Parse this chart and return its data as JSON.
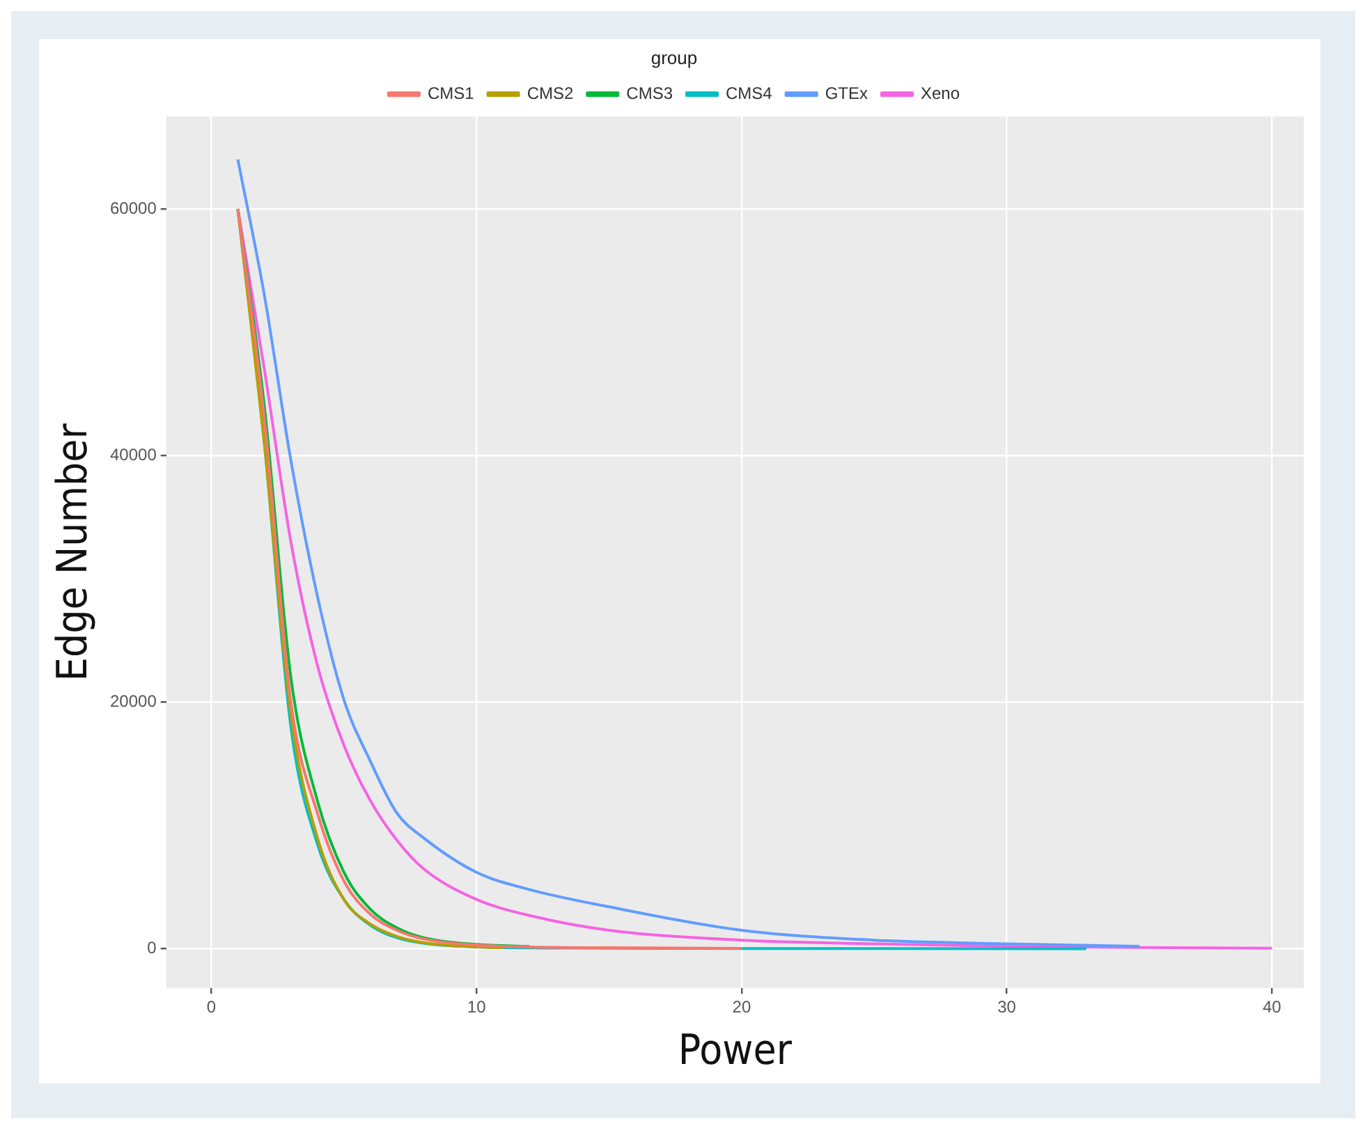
{
  "chart_data": {
    "type": "line",
    "xlabel": "Power",
    "ylabel": "Edge Number",
    "legend_title": "group",
    "xlim": [
      -1.7,
      41.2
    ],
    "xticks": [
      0,
      10,
      20,
      30,
      40
    ],
    "ylim": [
      -3200,
      67500
    ],
    "yticks": [
      0,
      20000,
      40000,
      60000
    ],
    "grid": true,
    "legend": "top",
    "marker": "none",
    "line_style": "solid",
    "series": [
      {
        "name": "CMS1",
        "color": "#f8766d",
        "x": [
          1,
          2,
          3,
          4,
          5,
          6,
          7,
          8,
          10,
          12,
          15,
          20
        ],
        "values": [
          60000,
          43000,
          20000,
          11000,
          5500,
          2800,
          1500,
          800,
          300,
          150,
          80,
          30
        ]
      },
      {
        "name": "CMS2",
        "color": "#b79f00",
        "x": [
          1,
          2,
          3,
          4,
          5,
          6,
          7,
          8,
          10,
          11
        ],
        "values": [
          60000,
          41000,
          19000,
          9000,
          4000,
          2000,
          1000,
          500,
          150,
          80
        ]
      },
      {
        "name": "CMS3",
        "color": "#00ba38",
        "x": [
          1,
          2,
          3,
          4,
          5,
          6,
          7,
          8,
          10,
          12
        ],
        "values": [
          60000,
          44000,
          22000,
          12000,
          6200,
          3200,
          1700,
          900,
          350,
          180
        ]
      },
      {
        "name": "CMS4",
        "color": "#00bfc4",
        "x": [
          1,
          2,
          3,
          4,
          5,
          6,
          7,
          8,
          10,
          15,
          20,
          25,
          33
        ],
        "values": [
          60000,
          41000,
          18000,
          8500,
          4000,
          1900,
          900,
          450,
          150,
          50,
          20,
          10,
          5
        ]
      },
      {
        "name": "GTEx",
        "color": "#619cff",
        "x": [
          1,
          2,
          3,
          4,
          5,
          6,
          7,
          8,
          10,
          12,
          15,
          20,
          25,
          30,
          35
        ],
        "values": [
          64000,
          53000,
          39600,
          28600,
          20200,
          15200,
          11000,
          9000,
          6200,
          4800,
          3400,
          1500,
          700,
          400,
          200
        ]
      },
      {
        "name": "Xeno",
        "color": "#f564e3",
        "x": [
          1,
          2,
          3,
          4,
          5,
          6,
          7,
          8,
          10,
          12,
          15,
          20,
          25,
          30,
          35,
          40
        ],
        "values": [
          60000,
          47000,
          33000,
          23000,
          16500,
          12000,
          8800,
          6500,
          4000,
          2700,
          1500,
          700,
          400,
          200,
          100,
          50
        ]
      }
    ]
  }
}
